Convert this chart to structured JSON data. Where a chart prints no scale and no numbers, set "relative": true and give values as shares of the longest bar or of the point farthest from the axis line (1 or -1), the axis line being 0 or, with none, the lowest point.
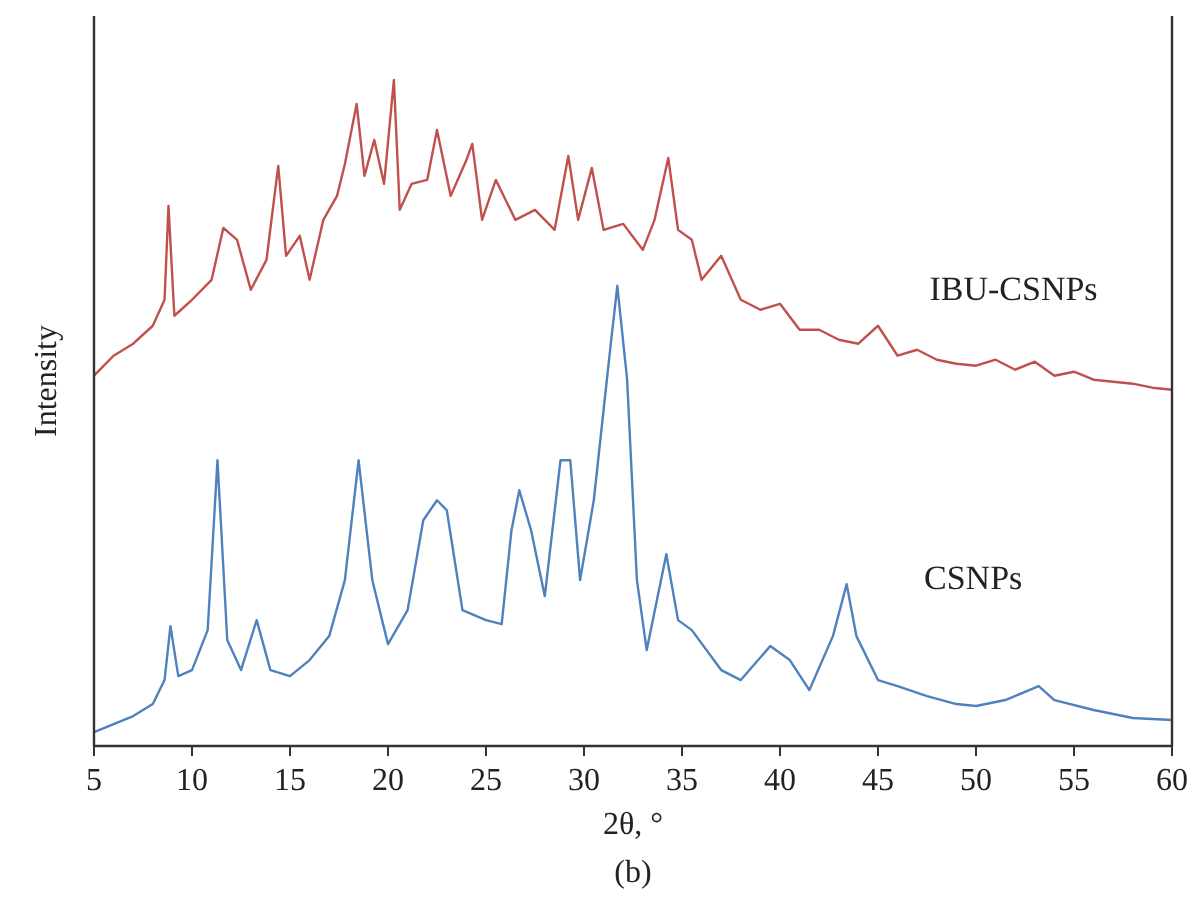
{
  "chart_data": {
    "type": "line",
    "xlabel": "2θ, °",
    "ylabel": "Intensity",
    "annotations": [
      "(b)"
    ],
    "relative": true,
    "xlim": [
      5,
      60
    ],
    "xticks": [
      5,
      10,
      15,
      20,
      25,
      30,
      35,
      40,
      45,
      50,
      55,
      60
    ],
    "grid": false,
    "marker": "none",
    "line_style": "solid",
    "series": [
      {
        "name": "IBU-CSNPs",
        "color": "#c0504d",
        "x": [
          5,
          6,
          7,
          8,
          8.6,
          8.8,
          9.1,
          10,
          11,
          11.6,
          12.3,
          13,
          13.8,
          14.4,
          14.8,
          15.5,
          16,
          16.7,
          17.4,
          17.8,
          18.4,
          18.8,
          19.3,
          19.8,
          20.3,
          20.6,
          21.2,
          22,
          22.5,
          23.2,
          24,
          24.3,
          24.8,
          25.5,
          26.5,
          27.5,
          28.5,
          29.2,
          29.7,
          30.4,
          31,
          32,
          33,
          33.6,
          34.3,
          34.8,
          35.5,
          36,
          37,
          38,
          39,
          40,
          41,
          42,
          43,
          44,
          45,
          46,
          47,
          48,
          49,
          50,
          51,
          52,
          53,
          54,
          55,
          56,
          57,
          58,
          59,
          60
        ],
        "values": [
          0.556,
          0.586,
          0.604,
          0.631,
          0.67,
          0.811,
          0.646,
          0.67,
          0.7,
          0.778,
          0.76,
          0.685,
          0.73,
          0.871,
          0.736,
          0.766,
          0.7,
          0.79,
          0.826,
          0.874,
          0.964,
          0.856,
          0.91,
          0.844,
          1.0,
          0.805,
          0.844,
          0.85,
          0.925,
          0.826,
          0.88,
          0.904,
          0.79,
          0.85,
          0.79,
          0.805,
          0.775,
          0.886,
          0.79,
          0.868,
          0.775,
          0.784,
          0.745,
          0.79,
          0.883,
          0.775,
          0.76,
          0.7,
          0.736,
          0.67,
          0.655,
          0.664,
          0.625,
          0.625,
          0.61,
          0.604,
          0.631,
          0.586,
          0.595,
          0.58,
          0.574,
          0.571,
          0.58,
          0.565,
          0.577,
          0.556,
          0.562,
          0.55,
          0.547,
          0.544,
          0.538,
          0.535
        ]
      },
      {
        "name": "CSNPs",
        "color": "#4f81bd",
        "x": [
          5,
          6,
          7,
          8,
          8.6,
          8.9,
          9.3,
          10,
          10.8,
          11.3,
          11.8,
          12.5,
          13.3,
          14,
          15,
          16,
          17,
          17.8,
          18.5,
          19.2,
          20,
          21,
          21.8,
          22.5,
          23,
          23.8,
          25,
          25.8,
          26.3,
          26.7,
          27.3,
          28,
          28.8,
          29.3,
          29.8,
          30.5,
          31.3,
          31.7,
          32.2,
          32.7,
          33.2,
          34.2,
          34.8,
          35.5,
          37,
          38,
          39.5,
          40.5,
          41.5,
          42.7,
          43.4,
          43.9,
          45,
          46,
          47.5,
          49,
          50,
          51.5,
          53.2,
          54,
          56,
          58,
          60
        ],
        "values": [
          0.021,
          0.033,
          0.045,
          0.063,
          0.099,
          0.18,
          0.105,
          0.114,
          0.174,
          0.429,
          0.159,
          0.114,
          0.189,
          0.114,
          0.105,
          0.129,
          0.165,
          0.249,
          0.429,
          0.249,
          0.153,
          0.204,
          0.339,
          0.369,
          0.354,
          0.204,
          0.189,
          0.183,
          0.324,
          0.384,
          0.324,
          0.225,
          0.429,
          0.429,
          0.249,
          0.369,
          0.586,
          0.691,
          0.55,
          0.249,
          0.144,
          0.288,
          0.189,
          0.174,
          0.114,
          0.099,
          0.15,
          0.129,
          0.084,
          0.165,
          0.243,
          0.165,
          0.099,
          0.09,
          0.075,
          0.063,
          0.06,
          0.069,
          0.09,
          0.069,
          0.054,
          0.042,
          0.039
        ]
      }
    ]
  }
}
